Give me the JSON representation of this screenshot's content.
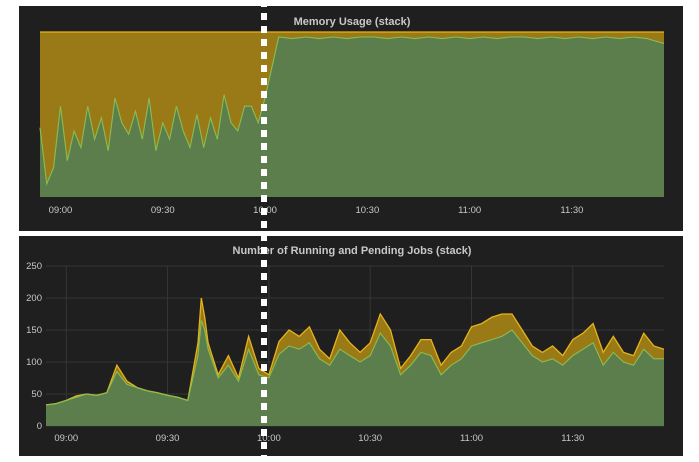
{
  "chart_data": [
    {
      "type": "area",
      "title": "Memory Usage (stack)",
      "x_ticks": [
        "09:00",
        "09:30",
        "10:00",
        "10:30",
        "11:00",
        "11:30"
      ],
      "y_ticks": [],
      "ylim": [
        0,
        100
      ],
      "x_range": [
        "08:54",
        "11:57"
      ],
      "stacked": true,
      "grid": true,
      "colors": {
        "top_area": "#9a7a17",
        "top_line": "#e5b31a",
        "base_area": "#5b7e4c",
        "base_line": "#89bd52"
      },
      "x": [
        "08:54",
        "08:56",
        "08:58",
        "09:00",
        "09:02",
        "09:04",
        "09:06",
        "09:08",
        "09:10",
        "09:12",
        "09:14",
        "09:16",
        "09:18",
        "09:20",
        "09:22",
        "09:24",
        "09:26",
        "09:28",
        "09:30",
        "09:32",
        "09:34",
        "09:36",
        "09:38",
        "09:40",
        "09:42",
        "09:44",
        "09:46",
        "09:48",
        "09:50",
        "09:52",
        "09:54",
        "09:56",
        "09:58",
        "10:00",
        "10:04",
        "10:08",
        "10:12",
        "10:16",
        "10:20",
        "10:24",
        "10:28",
        "10:32",
        "10:36",
        "10:40",
        "10:44",
        "10:48",
        "10:52",
        "10:56",
        "11:00",
        "11:04",
        "11:08",
        "11:12",
        "11:16",
        "11:20",
        "11:24",
        "11:28",
        "11:32",
        "11:36",
        "11:40",
        "11:44",
        "11:48",
        "11:52",
        "11:57"
      ],
      "series": [
        {
          "values": [
            42,
            8,
            18,
            55,
            22,
            40,
            30,
            55,
            35,
            48,
            28,
            60,
            45,
            38,
            52,
            35,
            60,
            28,
            45,
            35,
            55,
            40,
            30,
            50,
            30,
            48,
            35,
            62,
            45,
            40,
            55,
            55,
            45,
            60,
            97,
            96,
            97,
            96,
            97,
            96,
            97,
            97,
            96,
            97,
            96,
            97,
            96,
            97,
            96,
            97,
            96,
            97,
            97,
            96,
            97,
            96,
            97,
            96,
            97,
            96,
            97,
            96,
            93
          ]
        },
        {
          "values": [
            58,
            92,
            82,
            45,
            78,
            60,
            70,
            45,
            65,
            52,
            72,
            40,
            55,
            62,
            48,
            65,
            40,
            72,
            55,
            65,
            45,
            60,
            70,
            50,
            70,
            52,
            65,
            38,
            55,
            60,
            45,
            45,
            55,
            40,
            3,
            4,
            3,
            4,
            3,
            4,
            3,
            3,
            4,
            3,
            4,
            3,
            4,
            3,
            4,
            3,
            4,
            3,
            3,
            4,
            3,
            4,
            3,
            4,
            3,
            4,
            3,
            4,
            7
          ]
        }
      ]
    },
    {
      "type": "area",
      "title": "Number of Running and Pending Jobs (stack)",
      "x_ticks": [
        "09:00",
        "09:30",
        "10:00",
        "10:30",
        "11:00",
        "11:30"
      ],
      "y_ticks": [
        "0",
        "50",
        "100",
        "150",
        "200",
        "250"
      ],
      "ylim": [
        0,
        250
      ],
      "x_range": [
        "08:54",
        "11:57"
      ],
      "stacked": true,
      "grid": true,
      "colors": {
        "top_area": "#9a7a17",
        "top_line": "#e5b31a",
        "base_area": "#5b7e4c",
        "base_line": "#89bd52"
      },
      "x": [
        "08:54",
        "08:57",
        "09:00",
        "09:03",
        "09:06",
        "09:09",
        "09:12",
        "09:15",
        "09:18",
        "09:21",
        "09:24",
        "09:27",
        "09:30",
        "09:33",
        "09:36",
        "09:39",
        "09:40",
        "09:41",
        "09:42",
        "09:45",
        "09:48",
        "09:51",
        "09:54",
        "09:57",
        "10:00",
        "10:03",
        "10:06",
        "10:09",
        "10:12",
        "10:15",
        "10:18",
        "10:21",
        "10:24",
        "10:27",
        "10:30",
        "10:33",
        "10:36",
        "10:39",
        "10:42",
        "10:45",
        "10:48",
        "10:51",
        "10:54",
        "10:57",
        "11:00",
        "11:03",
        "11:06",
        "11:09",
        "11:12",
        "11:15",
        "11:18",
        "11:21",
        "11:24",
        "11:27",
        "11:30",
        "11:33",
        "11:36",
        "11:39",
        "11:42",
        "11:45",
        "11:48",
        "11:51",
        "11:54",
        "11:57"
      ],
      "series": [
        {
          "values": [
            33,
            35,
            40,
            45,
            50,
            48,
            52,
            85,
            65,
            60,
            55,
            52,
            48,
            45,
            40,
            110,
            165,
            150,
            120,
            75,
            95,
            70,
            120,
            80,
            75,
            112,
            125,
            120,
            130,
            105,
            95,
            120,
            110,
            100,
            110,
            145,
            125,
            80,
            95,
            115,
            110,
            80,
            95,
            105,
            125,
            130,
            135,
            140,
            150,
            130,
            110,
            100,
            105,
            95,
            110,
            120,
            130,
            95,
            115,
            100,
            95,
            120,
            105,
            105
          ]
        },
        {
          "values": [
            0,
            0,
            0,
            2,
            0,
            0,
            0,
            10,
            5,
            0,
            0,
            0,
            0,
            0,
            0,
            20,
            35,
            20,
            10,
            5,
            15,
            5,
            20,
            10,
            5,
            20,
            25,
            20,
            25,
            15,
            10,
            30,
            20,
            15,
            20,
            30,
            25,
            10,
            15,
            20,
            25,
            15,
            20,
            20,
            30,
            30,
            35,
            35,
            25,
            20,
            15,
            15,
            20,
            15,
            25,
            25,
            30,
            20,
            25,
            15,
            15,
            25,
            20,
            15
          ]
        }
      ]
    }
  ]
}
